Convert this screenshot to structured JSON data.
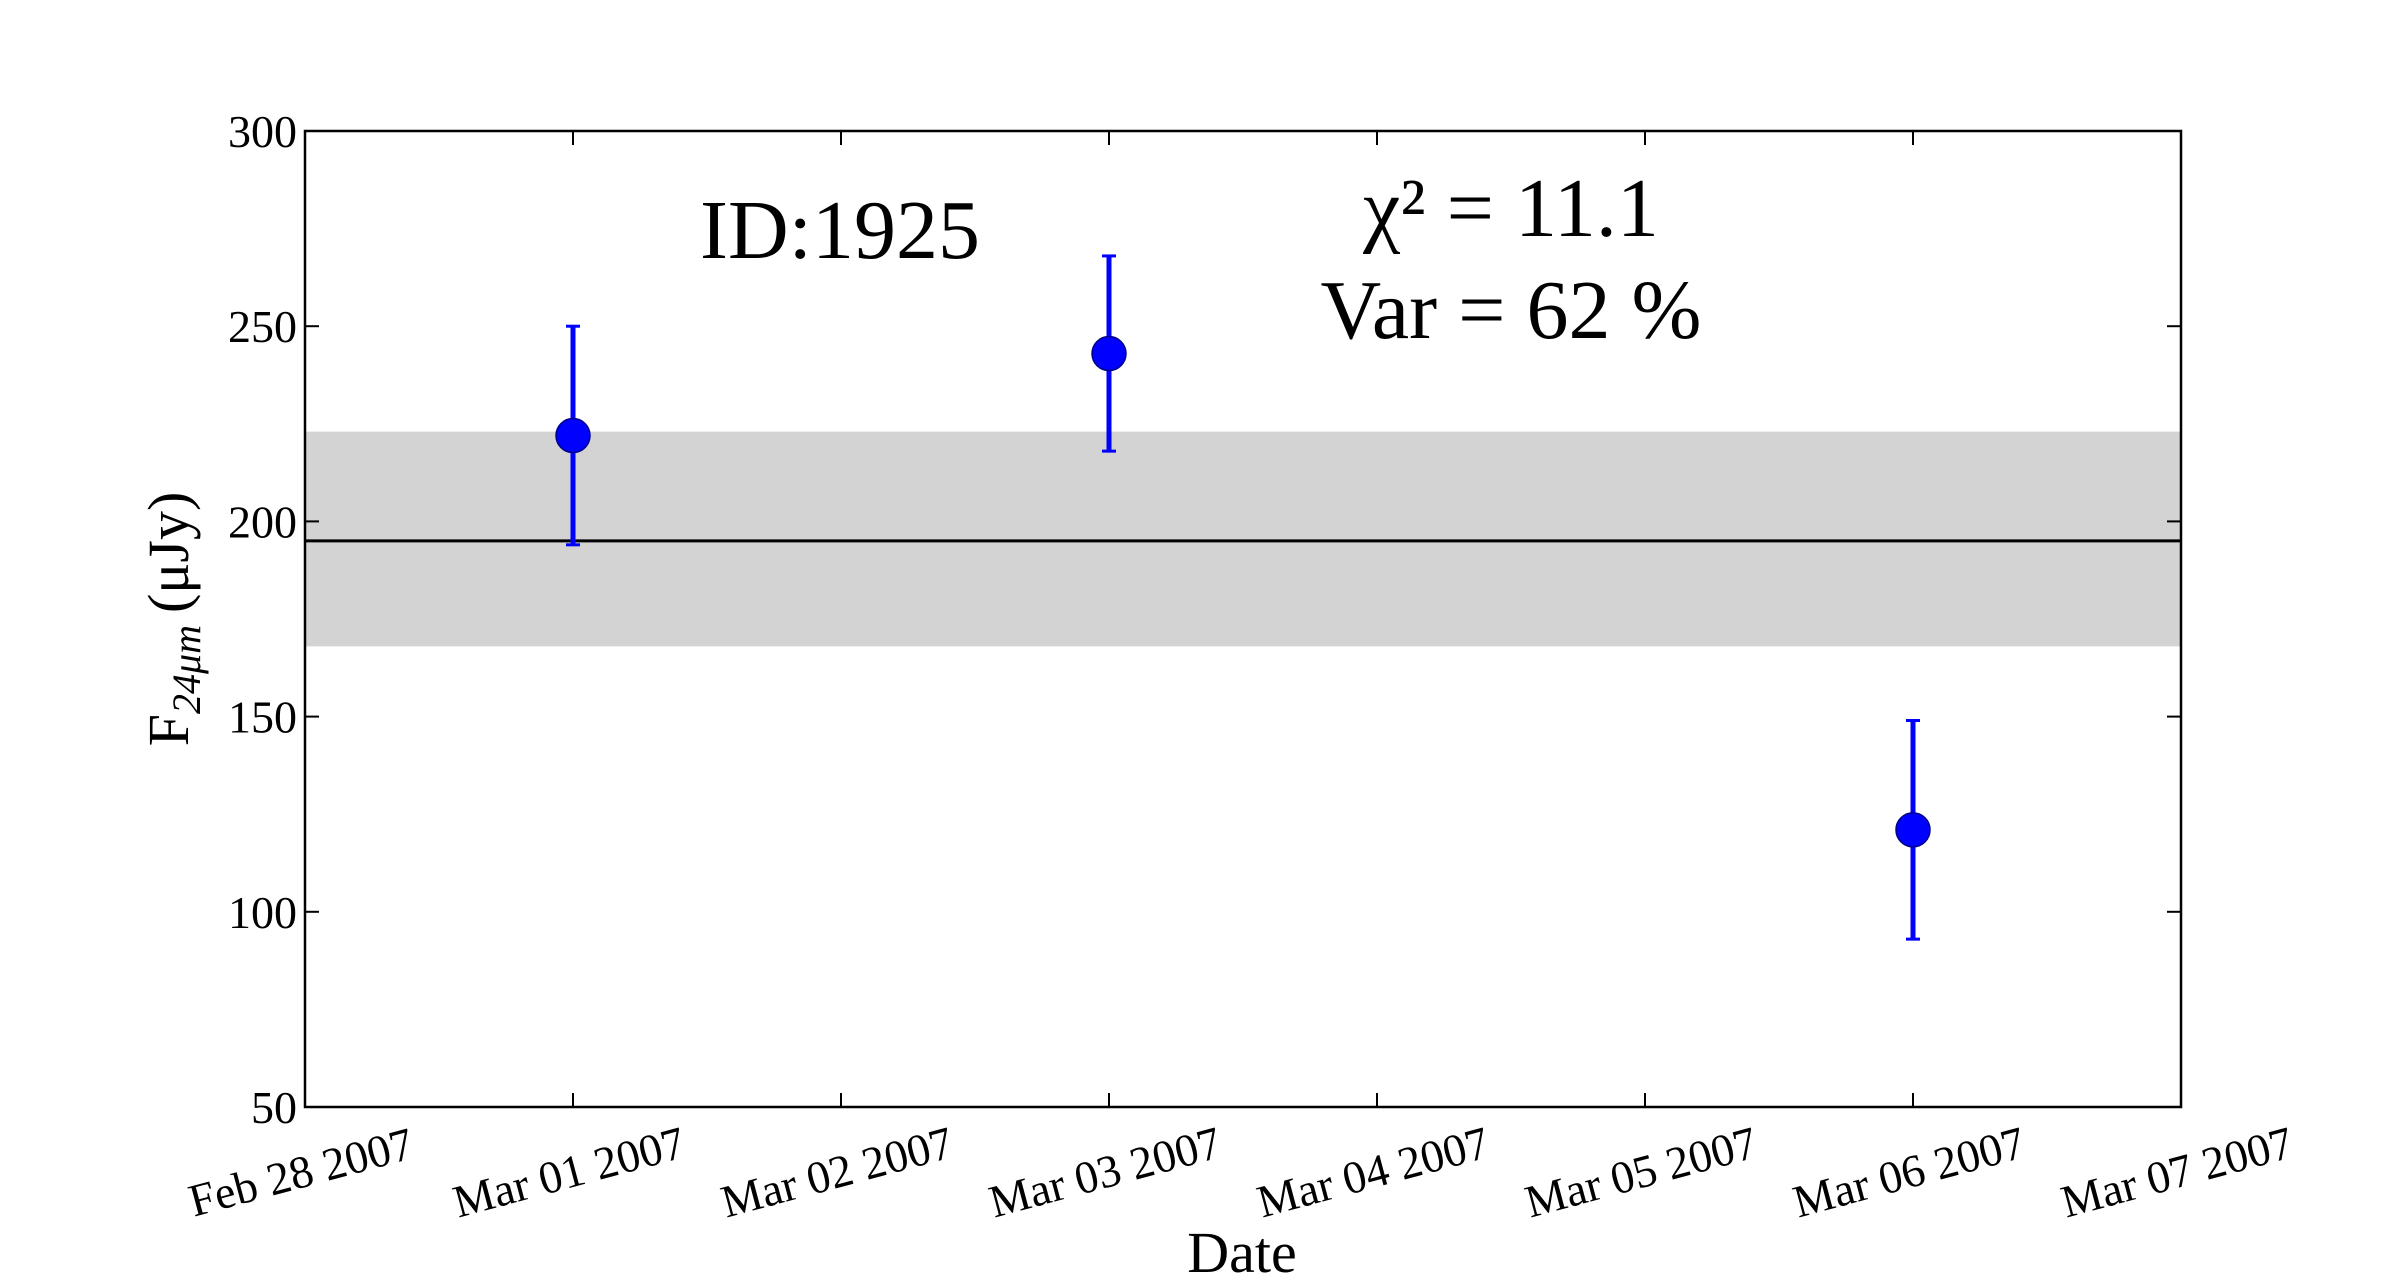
{
  "chart_data": {
    "type": "scatter",
    "annotations": {
      "id_label": "ID:1925",
      "chi2": "χ² = 11.1",
      "variability": "Var = 62 %"
    },
    "xlabel": "Date",
    "ylabel": {
      "main": "F",
      "sub": "24μm",
      "unit": "(μJy)"
    },
    "x": [
      "2007-03-01",
      "2007-03-03",
      "2007-03-06"
    ],
    "series": [
      {
        "color": "#0000ff",
        "values": [
          222,
          243,
          121
        ],
        "errors": [
          28,
          25,
          28
        ]
      }
    ],
    "reference_line": {
      "value": 195,
      "color": "#000000"
    },
    "band": {
      "range": [
        168,
        223
      ],
      "color": "#d3d3d3"
    },
    "xlim": [
      "2007-02-28",
      "2007-03-07"
    ],
    "xticks": [
      {
        "value": "2007-02-28",
        "label": "Feb 28 2007"
      },
      {
        "value": "2007-03-01",
        "label": "Mar 01 2007"
      },
      {
        "value": "2007-03-02",
        "label": "Mar 02 2007"
      },
      {
        "value": "2007-03-03",
        "label": "Mar 03 2007"
      },
      {
        "value": "2007-03-04",
        "label": "Mar 04 2007"
      },
      {
        "value": "2007-03-05",
        "label": "Mar 05 2007"
      },
      {
        "value": "2007-03-06",
        "label": "Mar 06 2007"
      },
      {
        "value": "2007-03-07",
        "label": "Mar 07 2007"
      }
    ],
    "ylim": [
      50,
      300
    ],
    "yticks": [
      50,
      100,
      150,
      200,
      250,
      300
    ]
  }
}
